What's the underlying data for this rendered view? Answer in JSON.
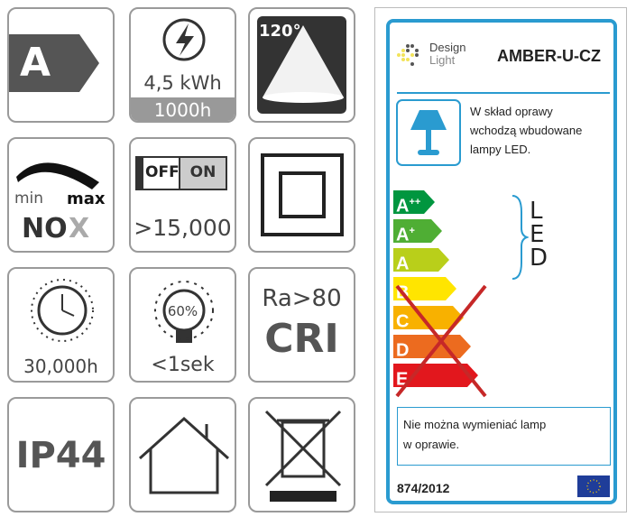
{
  "tiles": {
    "energy_class": "A",
    "energy": {
      "kwh": "4,5 kWh",
      "hours": "1000h"
    },
    "beam_angle": "120°",
    "dimming": {
      "min": "min",
      "max": "max",
      "brand": "NO",
      "brand_x": "X"
    },
    "switch": {
      "off": "OFF",
      "on": "ON",
      "cycles": ">15,000"
    },
    "lifetime": "30,000h",
    "warmup": {
      "percent": "60%",
      "time": "<1sek"
    },
    "cri": {
      "ra": "Ra>80",
      "label": "CRI"
    },
    "ip": "IP44"
  },
  "label": {
    "brand_line1": "Design",
    "brand_line2": "Light",
    "model": "AMBER-U-CZ",
    "lamp_text": [
      "W skład oprawy",
      "wchodzą wbudowane",
      "lampy LED."
    ],
    "classes": [
      {
        "c": "A",
        "sup": "++",
        "color": "#00963f"
      },
      {
        "c": "A",
        "sup": "+",
        "color": "#4fae34"
      },
      {
        "c": "A",
        "sup": "",
        "color": "#b9cf1a"
      },
      {
        "c": "B",
        "sup": "",
        "color": "#ffe500"
      },
      {
        "c": "C",
        "sup": "",
        "color": "#f8b100"
      },
      {
        "c": "D",
        "sup": "",
        "color": "#ec6b1f"
      },
      {
        "c": "E",
        "sup": "",
        "color": "#e2171d"
      }
    ],
    "led": "LED",
    "note": [
      "Nie można wymieniać lamp",
      "w oprawie."
    ],
    "regulation": "874/2012",
    "accent": "#2a9bd0",
    "cross_color": "#c62828"
  }
}
